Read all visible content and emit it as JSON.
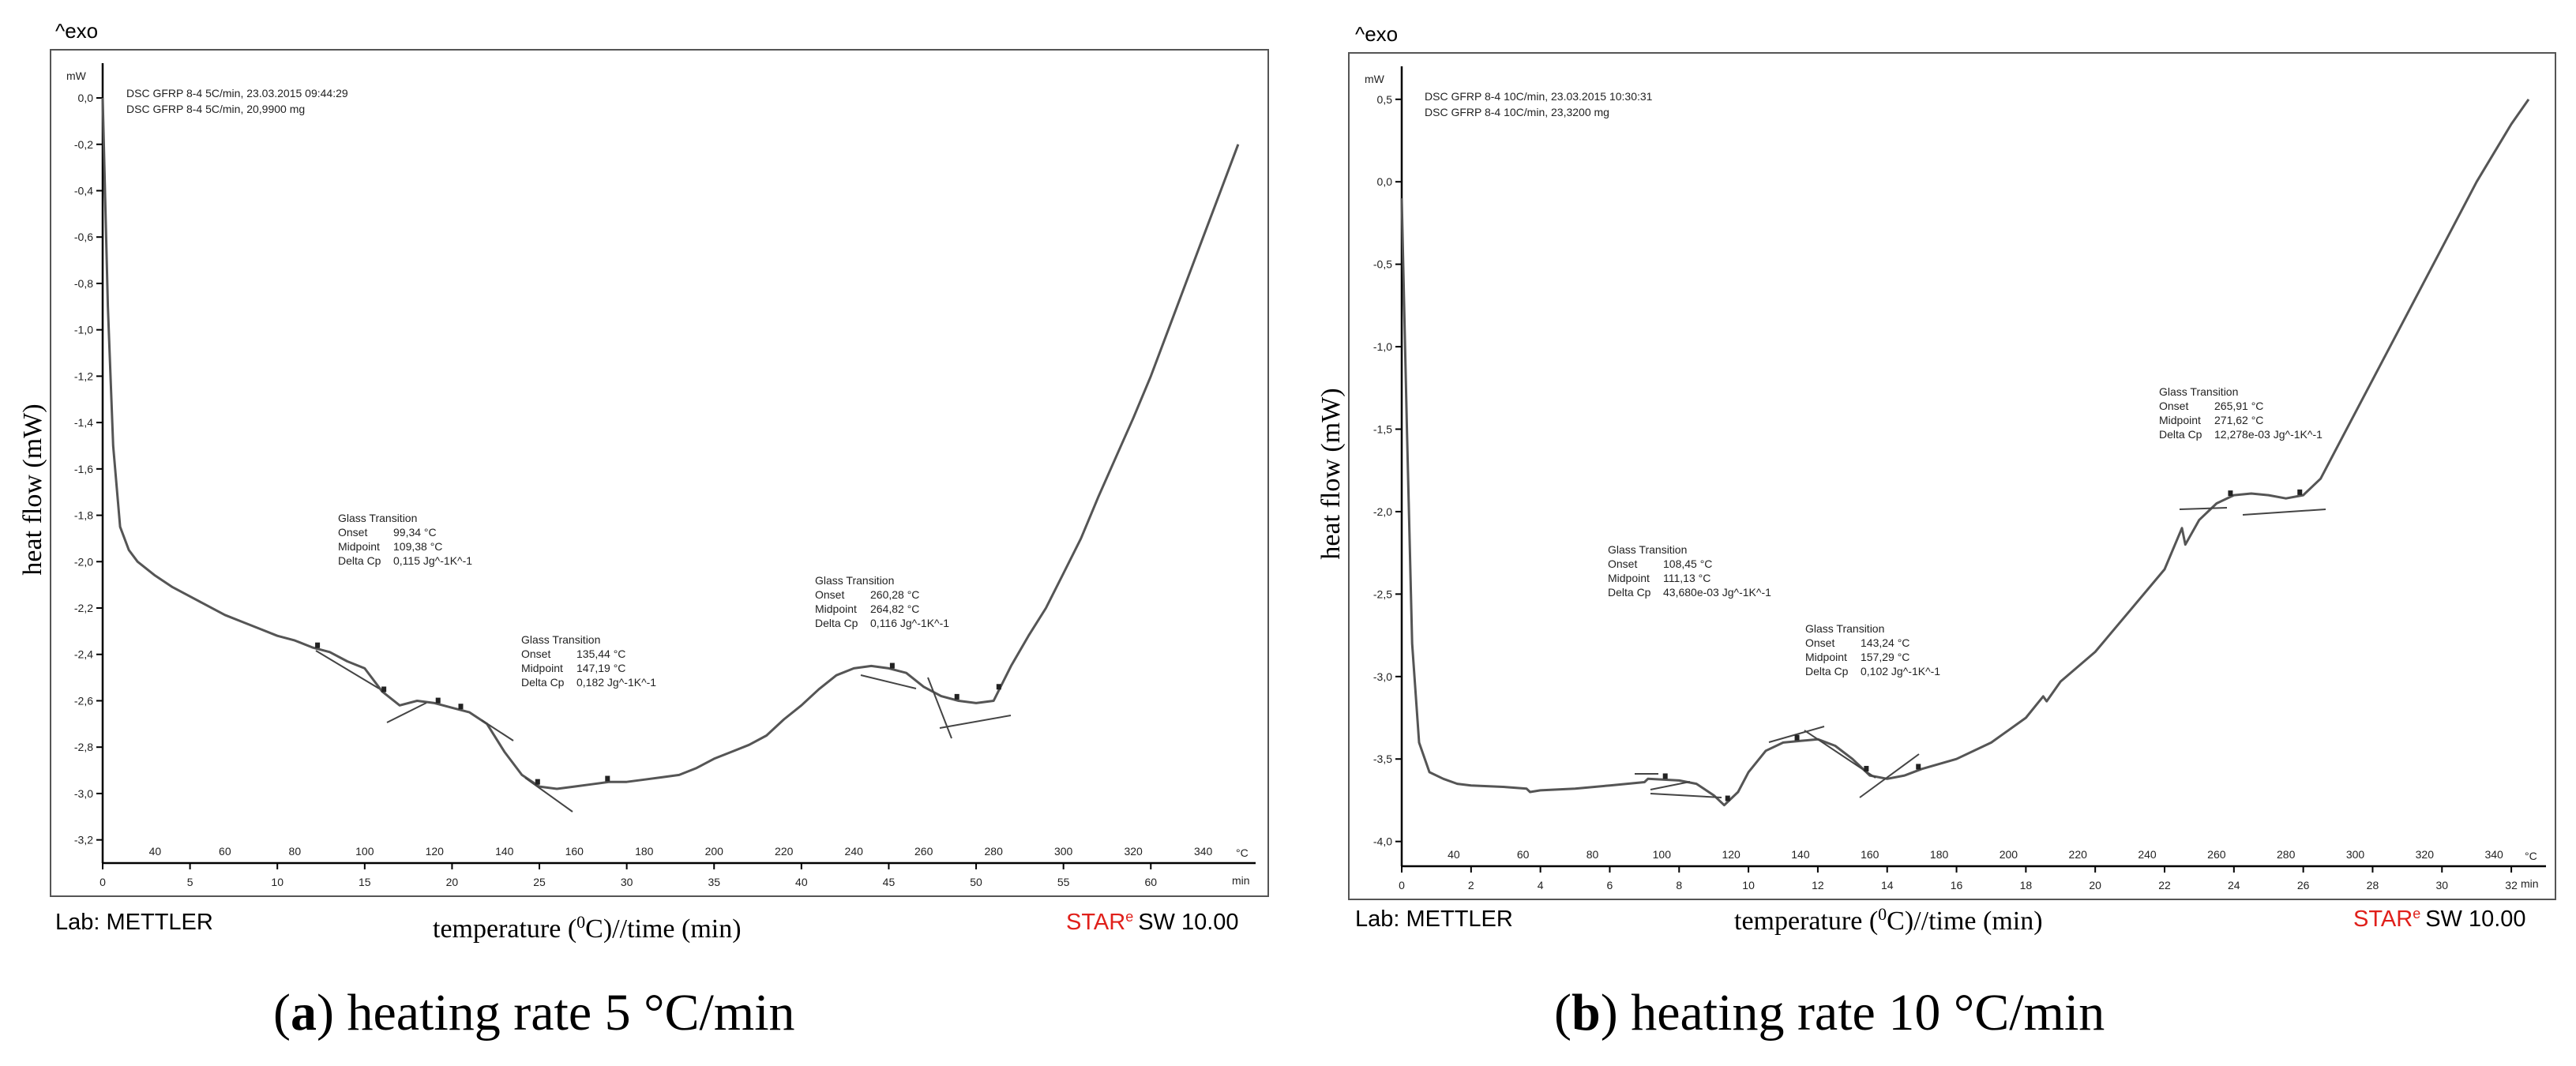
{
  "chart_data": [
    {
      "type": "line",
      "exo_label": "^exo",
      "y_unit": "mW",
      "header_lines": [
        "DSC GFRP 8-4 5C/min, 23.03.2015 09:44:29",
        "DSC GFRP 8-4 5C/min, 20,9900 mg"
      ],
      "ylabel": "heat flow (mW)",
      "xlabel_pre": "temperature (",
      "xlabel_sup": "0",
      "xlabel_post": "C)//time (min)",
      "ylim": [
        -3.3,
        0.15
      ],
      "yticks": [
        0.0,
        -0.2,
        -0.4,
        -0.6,
        -0.8,
        -1.0,
        -1.2,
        -1.4,
        -1.6,
        -1.8,
        -2.0,
        -2.2,
        -2.4,
        -2.6,
        -2.8,
        -3.0,
        -3.2
      ],
      "ytick_labels": [
        "0,0",
        "-0,2",
        "-0,4",
        "-0,6",
        "-0,8",
        "-1,0",
        "-1,2",
        "-1,4",
        "-1,6",
        "-1,8",
        "-2,0",
        "-2,2",
        "-2,4",
        "-2,6",
        "-2,8",
        "-3,0",
        "-3,2"
      ],
      "time_range": [
        0,
        66
      ],
      "time_ticks": [
        0,
        5,
        10,
        15,
        20,
        25,
        30,
        35,
        40,
        45,
        50,
        55,
        60
      ],
      "time_unit": "min",
      "temp_ticks": [
        40,
        60,
        80,
        100,
        120,
        140,
        160,
        180,
        200,
        220,
        240,
        260,
        280,
        300,
        320,
        340
      ],
      "temp_at_time_zero": 25,
      "temp_per_min": 5,
      "temp_unit": "°C",
      "series": [
        {
          "name": "DSC GFRP 8-4 5C/min",
          "x": [
            0,
            0.3,
            0.6,
            1,
            1.5,
            2,
            3,
            4,
            5,
            6,
            7,
            8,
            9,
            10,
            11,
            12,
            13,
            14,
            15,
            16,
            17,
            18,
            19,
            20,
            21,
            22,
            23,
            24,
            25,
            26,
            27,
            28,
            29,
            30,
            31,
            32,
            33,
            34,
            35,
            36,
            37,
            38,
            39,
            40,
            41,
            42,
            43,
            44,
            45,
            46,
            47,
            48,
            49,
            50,
            51,
            52,
            53,
            54,
            55,
            56,
            57,
            58,
            59,
            60,
            61,
            62,
            63,
            64,
            65
          ],
          "y": [
            0.0,
            -0.9,
            -1.5,
            -1.85,
            -1.95,
            -2.0,
            -2.06,
            -2.11,
            -2.15,
            -2.19,
            -2.23,
            -2.26,
            -2.29,
            -2.32,
            -2.34,
            -2.37,
            -2.39,
            -2.43,
            -2.46,
            -2.56,
            -2.62,
            -2.6,
            -2.61,
            -2.63,
            -2.65,
            -2.7,
            -2.82,
            -2.92,
            -2.97,
            -2.98,
            -2.97,
            -2.96,
            -2.95,
            -2.95,
            -2.94,
            -2.93,
            -2.92,
            -2.89,
            -2.85,
            -2.82,
            -2.79,
            -2.75,
            -2.68,
            -2.62,
            -2.55,
            -2.49,
            -2.46,
            -2.45,
            -2.46,
            -2.48,
            -2.54,
            -2.58,
            -2.6,
            -2.61,
            -2.6,
            -2.45,
            -2.32,
            -2.2,
            -2.05,
            -1.9,
            -1.72,
            -1.55,
            -1.38,
            -1.2,
            -1.0,
            -0.8,
            -0.6,
            -0.4,
            -0.2
          ]
        }
      ],
      "annotations": [
        {
          "title": "Glass Transition",
          "onset_label": "Onset",
          "onset": "99,34 °C",
          "midpoint_label": "Midpoint",
          "midpoint": "109,38 °C",
          "delta_label": "Delta Cp",
          "delta": "0,115 Jg^-1K^-1"
        },
        {
          "title": "Glass Transition",
          "onset_label": "Onset",
          "onset": "135,44 °C",
          "midpoint_label": "Midpoint",
          "midpoint": "147,19 °C",
          "delta_label": "Delta Cp",
          "delta": "0,182 Jg^-1K^-1"
        },
        {
          "title": "Glass Transition",
          "onset_label": "Onset",
          "onset": "260,28 °C",
          "midpoint_label": "Midpoint",
          "midpoint": "264,82 °C",
          "delta_label": "Delta Cp",
          "delta": "0,116 Jg^-1K^-1"
        }
      ],
      "markers_time": [
        12.3,
        16.1,
        19.2,
        20.5,
        24.9,
        28.9,
        45.2,
        48.9,
        51.3
      ],
      "lab": "Lab: METTLER",
      "software_red": "STAR",
      "software_sup": "e",
      "software_rest": "SW 10.00",
      "caption_letter": "a",
      "caption_text": "heating rate 5 °C/min"
    },
    {
      "type": "line",
      "exo_label": "^exo",
      "y_unit": "mW",
      "header_lines": [
        "DSC GFRP 8-4 10C/min, 23.03.2015 10:30:31",
        "DSC GFRP 8-4 10C/min, 23,3200 mg"
      ],
      "ylabel": "heat flow (mW)",
      "xlabel_pre": "temperature (",
      "xlabel_sup": "0",
      "xlabel_post": "C)//time (min)",
      "ylim": [
        -4.15,
        0.7
      ],
      "yticks": [
        0.5,
        0.0,
        -0.5,
        -1.0,
        -1.5,
        -2.0,
        -2.5,
        -3.0,
        -3.5,
        -4.0
      ],
      "ytick_labels": [
        "0,5",
        "0,0",
        "-0,5",
        "-1,0",
        "-1,5",
        "-2,0",
        "-2,5",
        "-3,0",
        "-3,5",
        "-4,0"
      ],
      "time_range": [
        0,
        33
      ],
      "time_ticks": [
        0,
        2,
        4,
        6,
        8,
        10,
        12,
        14,
        16,
        18,
        20,
        22,
        24,
        26,
        28,
        30,
        32
      ],
      "time_unit": "min",
      "temp_ticks": [
        40,
        60,
        80,
        100,
        120,
        140,
        160,
        180,
        200,
        220,
        240,
        260,
        280,
        300,
        320,
        340
      ],
      "temp_at_time_zero": 25,
      "temp_per_min": 10,
      "temp_unit": "°C",
      "series": [
        {
          "name": "DSC GFRP 8-4 10C/min",
          "x": [
            0,
            0.15,
            0.3,
            0.5,
            0.8,
            1.2,
            1.6,
            2,
            3,
            3.6,
            3.7,
            4,
            5,
            6,
            7,
            7.1,
            8,
            8.5,
            9,
            9.3,
            9.7,
            10,
            10.5,
            11,
            11.5,
            12,
            12.5,
            13,
            13.5,
            14,
            14.5,
            15,
            16,
            17,
            18,
            18.5,
            18.6,
            19,
            20,
            21,
            22,
            22.5,
            22.6,
            23,
            23.5,
            24,
            24.5,
            25,
            25.5,
            26,
            26.5,
            27,
            28,
            29,
            30,
            31,
            32,
            32.5
          ],
          "y": [
            -0.1,
            -1.5,
            -2.8,
            -3.4,
            -3.58,
            -3.62,
            -3.65,
            -3.66,
            -3.67,
            -3.68,
            -3.7,
            -3.69,
            -3.68,
            -3.66,
            -3.64,
            -3.62,
            -3.63,
            -3.65,
            -3.72,
            -3.78,
            -3.7,
            -3.58,
            -3.45,
            -3.4,
            -3.39,
            -3.38,
            -3.42,
            -3.5,
            -3.6,
            -3.62,
            -3.6,
            -3.56,
            -3.5,
            -3.4,
            -3.25,
            -3.12,
            -3.15,
            -3.03,
            -2.85,
            -2.6,
            -2.35,
            -2.1,
            -2.2,
            -2.05,
            -1.95,
            -1.9,
            -1.89,
            -1.9,
            -1.92,
            -1.9,
            -1.8,
            -1.6,
            -1.2,
            -0.8,
            -0.4,
            0.0,
            0.35,
            0.5
          ]
        }
      ],
      "annotations": [
        {
          "title": "Glass Transition",
          "onset_label": "Onset",
          "onset": "265,91 °C",
          "midpoint_label": "Midpoint",
          "midpoint": "271,62 °C",
          "delta_label": "Delta Cp",
          "delta": "12,278e-03 Jg^-1K^-1"
        },
        {
          "title": "Glass Transition",
          "onset_label": "Onset",
          "onset": "108,45 °C",
          "midpoint_label": "Midpoint",
          "midpoint": "111,13 °C",
          "delta_label": "Delta Cp",
          "delta": "43,680e-03 Jg^-1K^-1"
        },
        {
          "title": "Glass Transition",
          "onset_label": "Onset",
          "onset": "143,24 °C",
          "midpoint_label": "Midpoint",
          "midpoint": "157,29 °C",
          "delta_label": "Delta Cp",
          "delta": "0,102 Jg^-1K^-1"
        }
      ],
      "markers_time": [
        7.6,
        9.4,
        11.4,
        13.4,
        14.9,
        23.9,
        25.9
      ],
      "lab": "Lab: METTLER",
      "software_red": "STAR",
      "software_sup": "e",
      "software_rest": "SW 10.00",
      "caption_letter": "b",
      "caption_text": "heating rate 10 °C/min"
    }
  ]
}
